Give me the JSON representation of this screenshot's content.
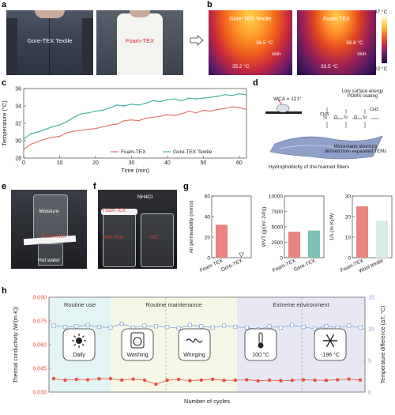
{
  "panels": {
    "a": {
      "label": "a",
      "photo_left_text": "Gore-TEX Textile",
      "photo_right_text": "Foam-TEX"
    },
    "b": {
      "label": "b",
      "left": {
        "title": "Gore-TEX Textile",
        "temp_top": "36.5 °C",
        "skin": "skin",
        "temp_bottom": "35.2 °C"
      },
      "right": {
        "title": "Foam-TEX",
        "temp_top": "36.6 °C",
        "skin": "skin",
        "temp_bottom": "33.5 °C"
      },
      "colorbar_max": "37 °C",
      "colorbar_min": "22 °C"
    },
    "c": {
      "label": "c"
    },
    "d": {
      "label": "d",
      "wca": "WCA = 121°",
      "coating_line1": "Low surface energy",
      "coating_line2": "PDMS coating",
      "structure_line1": "Micro-nano structure",
      "structure_line2": "derived from expanded TEMs",
      "caption": "Hydrophobicity of the foamed fibers",
      "chem": {
        "ch3a": "CH3",
        "si1": "Si",
        "o1": "O",
        "si2": "Si",
        "o2": "O",
        "si3": "Si",
        "ch3b": "CH3"
      }
    },
    "e": {
      "label": "e",
      "moisture": "Moisture",
      "foam": "Foam-TEX",
      "hot_water": "Hot water"
    },
    "f": {
      "label": "f",
      "nh4cl": "NH4Cl",
      "foam": "Foam-TEX",
      "nh3": "NH3·H2O",
      "hcl": "HCl"
    },
    "g": {
      "label": "g"
    },
    "h": {
      "label": "h",
      "regions": [
        "Routine use",
        "Routine maintenance",
        "Extreme environment"
      ],
      "icons": [
        {
          "name": "sun-icon",
          "label": "Daily"
        },
        {
          "name": "washing-machine-icon",
          "label": "Washing"
        },
        {
          "name": "wringing-icon",
          "label": "Wringing"
        },
        {
          "name": "thermometer-icon",
          "label": "100 °C"
        },
        {
          "name": "snowflake-icon",
          "label": "-196 °C"
        }
      ]
    }
  },
  "chart_data": [
    {
      "id": "c",
      "type": "line",
      "xlabel": "Time (min)",
      "ylabel": "Temperature (°C)",
      "xlim": [
        0,
        62
      ],
      "ylim": [
        28,
        36
      ],
      "xticks": [
        0,
        10,
        20,
        30,
        40,
        50,
        60
      ],
      "yticks": [
        28,
        30,
        32,
        34,
        36
      ],
      "series": [
        {
          "name": "Foam-TEX",
          "color": "#e07b6f",
          "x": [
            0,
            2,
            4,
            6,
            8,
            10,
            12,
            14,
            16,
            18,
            20,
            22,
            24,
            26,
            28,
            30,
            32,
            34,
            36,
            38,
            40,
            42,
            44,
            46,
            48,
            50,
            52,
            54,
            56,
            58,
            60,
            62
          ],
          "y": [
            29.0,
            29.6,
            29.9,
            30.2,
            30.4,
            30.5,
            30.9,
            31.1,
            31.2,
            31.3,
            31.4,
            31.6,
            31.8,
            31.9,
            32.3,
            32.4,
            32.3,
            32.6,
            32.7,
            32.8,
            33.0,
            32.9,
            33.1,
            33.4,
            33.2,
            33.5,
            33.4,
            33.6,
            33.7,
            33.9,
            33.8,
            33.6
          ]
        },
        {
          "name": "Gore-TEX Textile",
          "color": "#4bb3a3",
          "x": [
            0,
            2,
            4,
            6,
            8,
            10,
            12,
            14,
            16,
            18,
            20,
            22,
            24,
            26,
            28,
            30,
            32,
            34,
            36,
            38,
            40,
            42,
            44,
            46,
            48,
            50,
            52,
            54,
            56,
            58,
            60,
            62
          ],
          "y": [
            30.2,
            30.8,
            31.0,
            31.3,
            31.6,
            31.8,
            32.2,
            32.7,
            33.1,
            33.2,
            33.4,
            33.5,
            33.8,
            34.1,
            34.0,
            34.2,
            34.1,
            34.3,
            34.6,
            34.5,
            34.7,
            34.8,
            34.6,
            34.9,
            34.8,
            34.9,
            35.0,
            35.1,
            35.3,
            35.2,
            35.4,
            35.3
          ]
        }
      ]
    },
    {
      "id": "g1",
      "type": "bar",
      "ylabel": "Air permeability (mm/s)",
      "categories": [
        "Foam-TEX",
        "Gore-TEX"
      ],
      "values": [
        32,
        0
      ],
      "colors": [
        "#e8837e",
        "#4bb3a3"
      ],
      "ylim": [
        0,
        60
      ],
      "yticks": [
        0,
        20,
        40,
        60
      ]
    },
    {
      "id": "g2",
      "type": "bar",
      "ylabel": "WVT (g/(m²·24h))",
      "categories": [
        "Foam-TEX",
        "Gore-TEX"
      ],
      "values": [
        4200,
        4400
      ],
      "colors": [
        "#e8837e",
        "#7cc2b4"
      ],
      "ylim": [
        0,
        10000
      ],
      "yticks": [
        0,
        2500,
        5000,
        7500,
        10000
      ]
    },
    {
      "id": "g3",
      "type": "bar",
      "ylabel": "1/λ (m·K)/W",
      "categories": [
        "Foam-TEX",
        "Wool textile"
      ],
      "values": [
        25,
        18
      ],
      "colors": [
        "#e8837e",
        "#d9ede6"
      ],
      "ylim": [
        0,
        30
      ],
      "yticks": [
        0,
        10,
        20,
        30
      ]
    },
    {
      "id": "h",
      "type": "line",
      "xlabel": "Number of cycles",
      "ylabel_left": "Thermal conductivity (W/(m·K))",
      "ylabel_right": "Temperature difference (ΔT, °C)",
      "ylim_left": [
        0.03,
        0.09
      ],
      "yticks_left": [
        "0.030",
        "0.045",
        "0.060",
        "0.075",
        "0.090"
      ],
      "ylim_right": [
        0,
        15
      ],
      "yticks_right": [
        0,
        5,
        10,
        15
      ],
      "series": [
        {
          "name": "Thermal conductivity",
          "axis": "left",
          "color": "#e8503f",
          "y": [
            0.0385,
            0.0375,
            0.038,
            0.0378,
            0.0384,
            0.0385,
            0.0376,
            0.0382,
            0.0375,
            0.035,
            0.0375,
            0.038,
            0.0372,
            0.0376,
            0.0381,
            0.0374,
            0.0375,
            0.0378,
            0.0371,
            0.0375,
            0.0372,
            0.0374,
            0.0378,
            0.0375,
            0.0374,
            0.0378,
            0.0382,
            0.0376
          ]
        },
        {
          "name": "Temperature difference",
          "axis": "right",
          "color": "#7fa3d6",
          "y": [
            10.5,
            10.3,
            10.4,
            10.6,
            10.3,
            10.2,
            10.8,
            10.2,
            10.5,
            10.4,
            10.3,
            10.1,
            10.6,
            10.4,
            10.2,
            10.5,
            10.3,
            10.2,
            9.9,
            10.4,
            10.2,
            10.6,
            10.3,
            10.0,
            10.4,
            10.2,
            10.5,
            10.2
          ]
        }
      ]
    }
  ]
}
